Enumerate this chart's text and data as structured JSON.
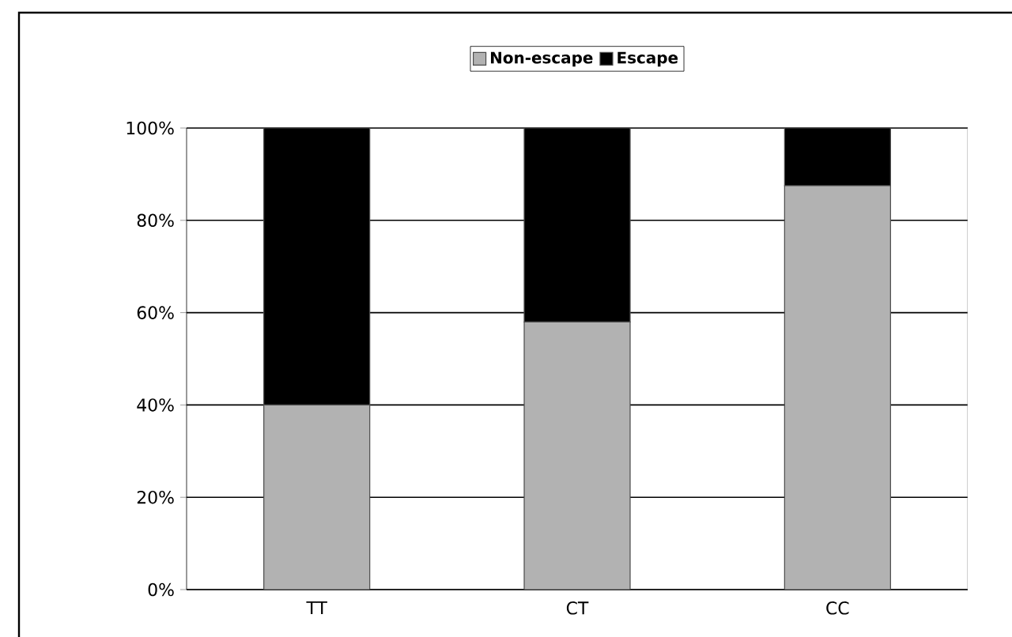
{
  "chart_data": {
    "type": "bar",
    "stacked": true,
    "categories": [
      "TT",
      "CT",
      "CC"
    ],
    "series": [
      {
        "name": "Non-escape",
        "color": "#b2b2b2",
        "values": [
          40,
          58,
          87.5
        ]
      },
      {
        "name": "Escape",
        "color": "#000000",
        "values": [
          60,
          42,
          12.5
        ]
      }
    ],
    "ylim": [
      0,
      100
    ],
    "yticks": [
      {
        "value": 0,
        "label": "0%"
      },
      {
        "value": 20,
        "label": "20%"
      },
      {
        "value": 40,
        "label": "40%"
      },
      {
        "value": 60,
        "label": "60%"
      },
      {
        "value": 80,
        "label": "80%"
      },
      {
        "value": 100,
        "label": "100%"
      }
    ],
    "grid": "y",
    "legend": "top"
  }
}
